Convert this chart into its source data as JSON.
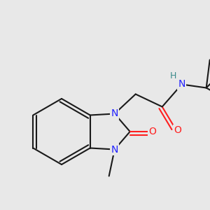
{
  "background_color": "#e8e8e8",
  "bond_color": "#1a1a1a",
  "N_color": "#2020ff",
  "O_color": "#ff2020",
  "NH_color": "#3a8a8a",
  "figsize": [
    3.0,
    3.0
  ],
  "dpi": 100,
  "xlim": [
    0,
    300
  ],
  "ylim": [
    0,
    300
  ]
}
